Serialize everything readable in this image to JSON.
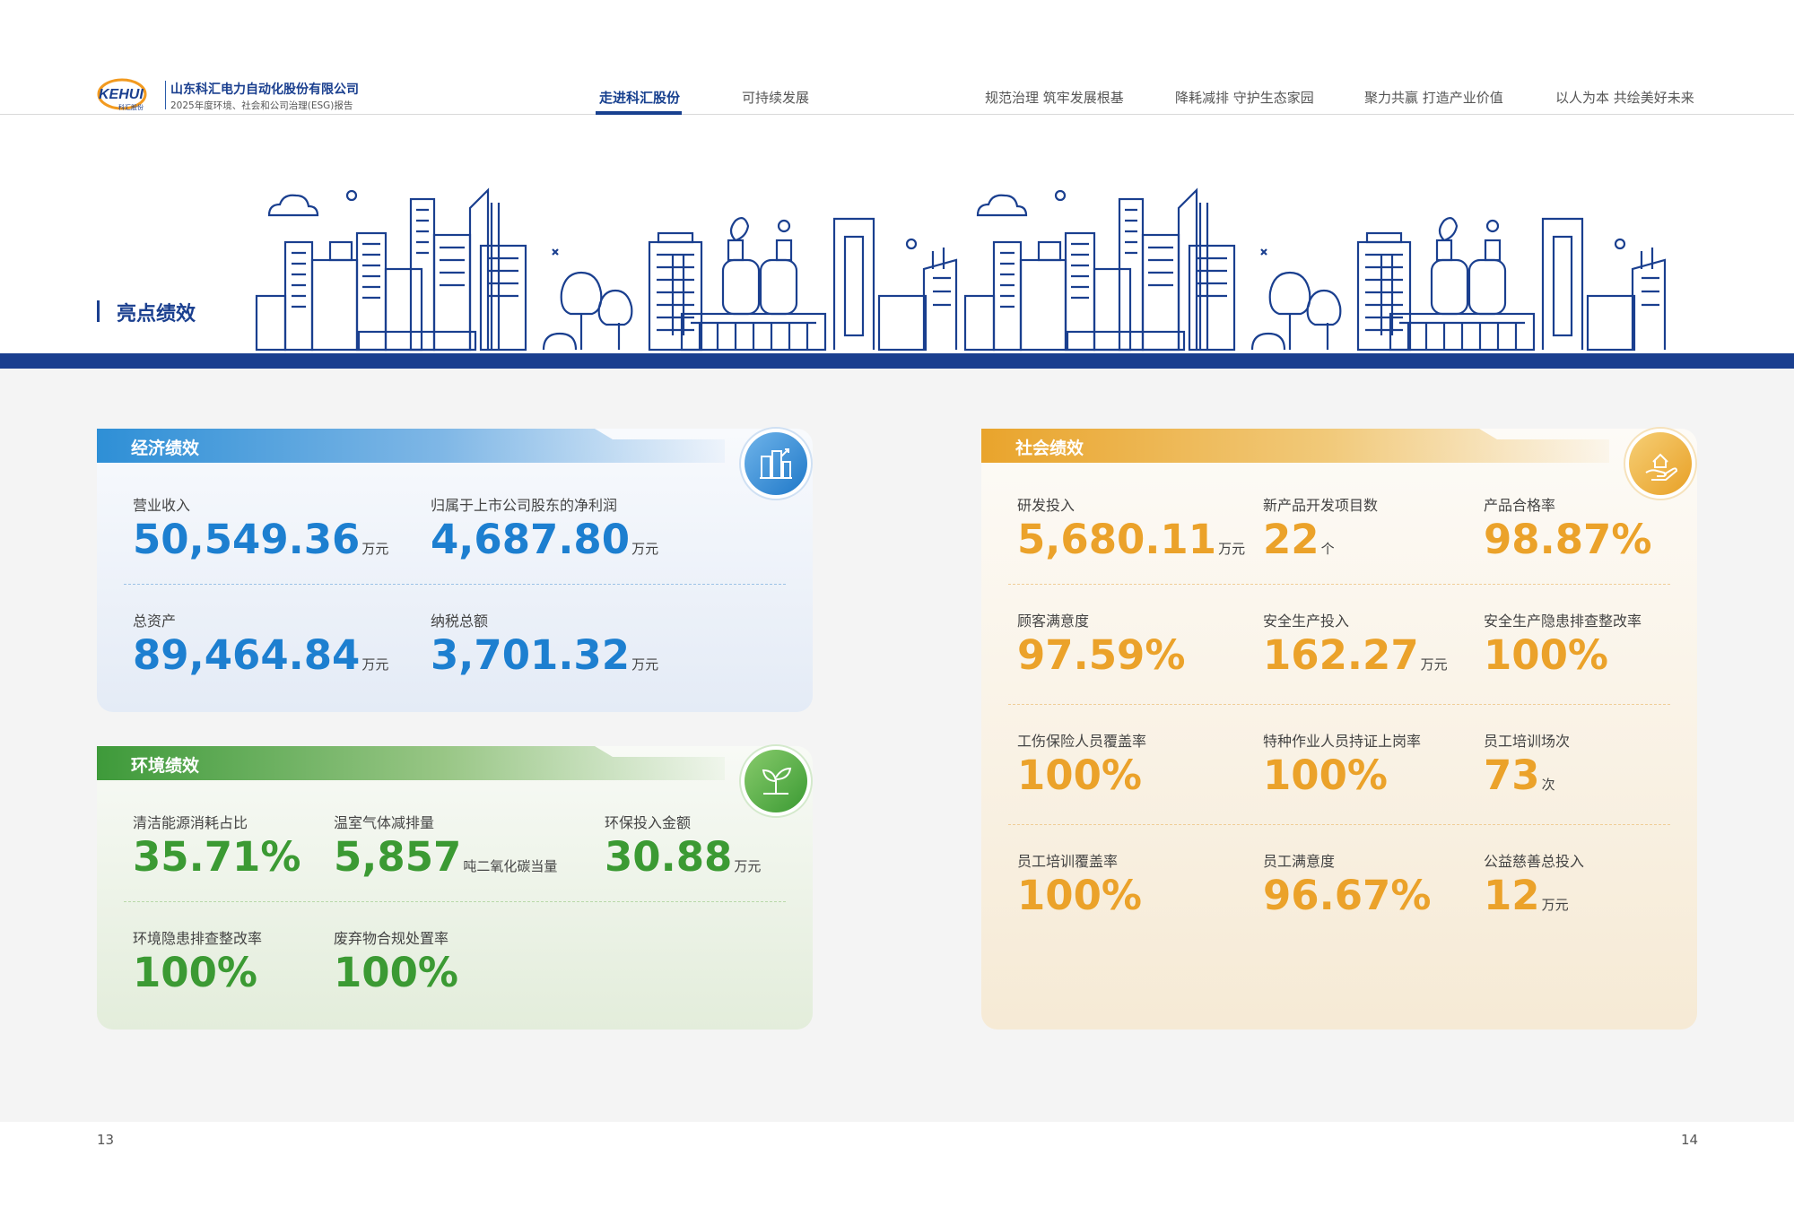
{
  "header": {
    "logo_text": "KEHUI",
    "logo_sub": "科汇股份",
    "company": "山东科汇电力自动化股份有限公司",
    "report": "2025年度环境、社会和公司治理(ESG)报告",
    "nav": [
      "走进科汇股份",
      "可持续发展",
      "规范治理 筑牢发展根基",
      "降耗减排 守护生态家园",
      "聚力共赢 打造产业价值",
      "以人为本 共绘美好未来"
    ]
  },
  "section_title": "亮点绩效",
  "economic": {
    "title": "经济绩效",
    "metrics": [
      {
        "label": "营业收入",
        "value": "50,549.36",
        "unit": "万元"
      },
      {
        "label": "归属于上市公司股东的净利润",
        "value": "4,687.80",
        "unit": "万元"
      },
      {
        "label": "总资产",
        "value": "89,464.84",
        "unit": "万元"
      },
      {
        "label": "纳税总额",
        "value": "3,701.32",
        "unit": "万元"
      }
    ]
  },
  "environment": {
    "title": "环境绩效",
    "metrics": [
      {
        "label": "清洁能源消耗占比",
        "value": "35.71%",
        "unit": ""
      },
      {
        "label": "温室气体减排量",
        "value": "5,857",
        "unit": "吨二氧化碳当量"
      },
      {
        "label": "环保投入金额",
        "value": "30.88",
        "unit": "万元"
      },
      {
        "label": "环境隐患排查整改率",
        "value": "100%",
        "unit": ""
      },
      {
        "label": "废弃物合规处置率",
        "value": "100%",
        "unit": ""
      }
    ]
  },
  "social": {
    "title": "社会绩效",
    "metrics": [
      {
        "label": "研发投入",
        "value": "5,680.11",
        "unit": "万元"
      },
      {
        "label": "新产品开发项目数",
        "value": "22",
        "unit": "个"
      },
      {
        "label": "产品合格率",
        "value": "98.87%",
        "unit": ""
      },
      {
        "label": "顾客满意度",
        "value": "97.59%",
        "unit": ""
      },
      {
        "label": "安全生产投入",
        "value": "162.27",
        "unit": "万元"
      },
      {
        "label": "安全生产隐患排查整改率",
        "value": "100%",
        "unit": ""
      },
      {
        "label": "工伤保险人员覆盖率",
        "value": "100%",
        "unit": ""
      },
      {
        "label": "特种作业人员持证上岗率",
        "value": "100%",
        "unit": ""
      },
      {
        "label": "员工培训场次",
        "value": "73",
        "unit": "次"
      },
      {
        "label": "员工培训覆盖率",
        "value": "100%",
        "unit": ""
      },
      {
        "label": "员工满意度",
        "value": "96.67%",
        "unit": ""
      },
      {
        "label": "公益慈善总投入",
        "value": "12",
        "unit": "万元"
      }
    ]
  },
  "pages": {
    "left": "13",
    "right": "14"
  },
  "colors": {
    "primary": "#1a3f8f",
    "economic": "#1d7fd0",
    "environment": "#3b9a33",
    "social": "#eba22a"
  },
  "icons": {
    "economic": "city-growth-icon",
    "environment": "sprout-icon",
    "social": "hand-house-icon"
  }
}
